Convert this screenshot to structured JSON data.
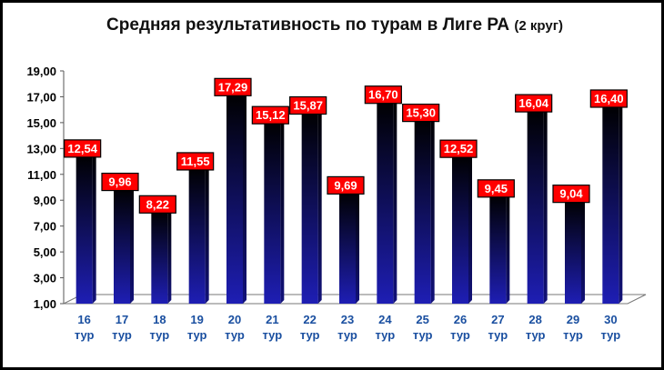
{
  "chart_data": {
    "type": "bar",
    "title": "Средняя результативность по турам в Лиге РА",
    "subtitle": "(2 круг)",
    "categories": [
      "16 тур",
      "17 тур",
      "18 тур",
      "19 тур",
      "20 тур",
      "21 тур",
      "22 тур",
      "23 тур",
      "24 тур",
      "25 тур",
      "26 тур",
      "27 тур",
      "28 тур",
      "29 тур",
      "30 тур"
    ],
    "values": [
      12.54,
      9.96,
      8.22,
      11.55,
      17.29,
      15.12,
      15.87,
      9.69,
      16.7,
      15.3,
      12.52,
      9.45,
      16.04,
      9.04,
      16.4
    ],
    "data_labels": [
      "12,54",
      "9,96",
      "8,22",
      "11,55",
      "17,29",
      "15,12",
      "15,87",
      "9,69",
      "16,70",
      "15,30",
      "12,52",
      "9,45",
      "16,04",
      "9,04",
      "16,40"
    ],
    "y_ticks": [
      "1,00",
      "3,00",
      "5,00",
      "7,00",
      "9,00",
      "11,00",
      "13,00",
      "15,00",
      "17,00",
      "19,00"
    ],
    "ylim": [
      1,
      19
    ],
    "grid": false,
    "colors": {
      "bar_top": "#000000",
      "bar_bottom": "#1e1eb4",
      "label_bg": "#ff0000",
      "axis_label": "#1a4fa0"
    }
  }
}
